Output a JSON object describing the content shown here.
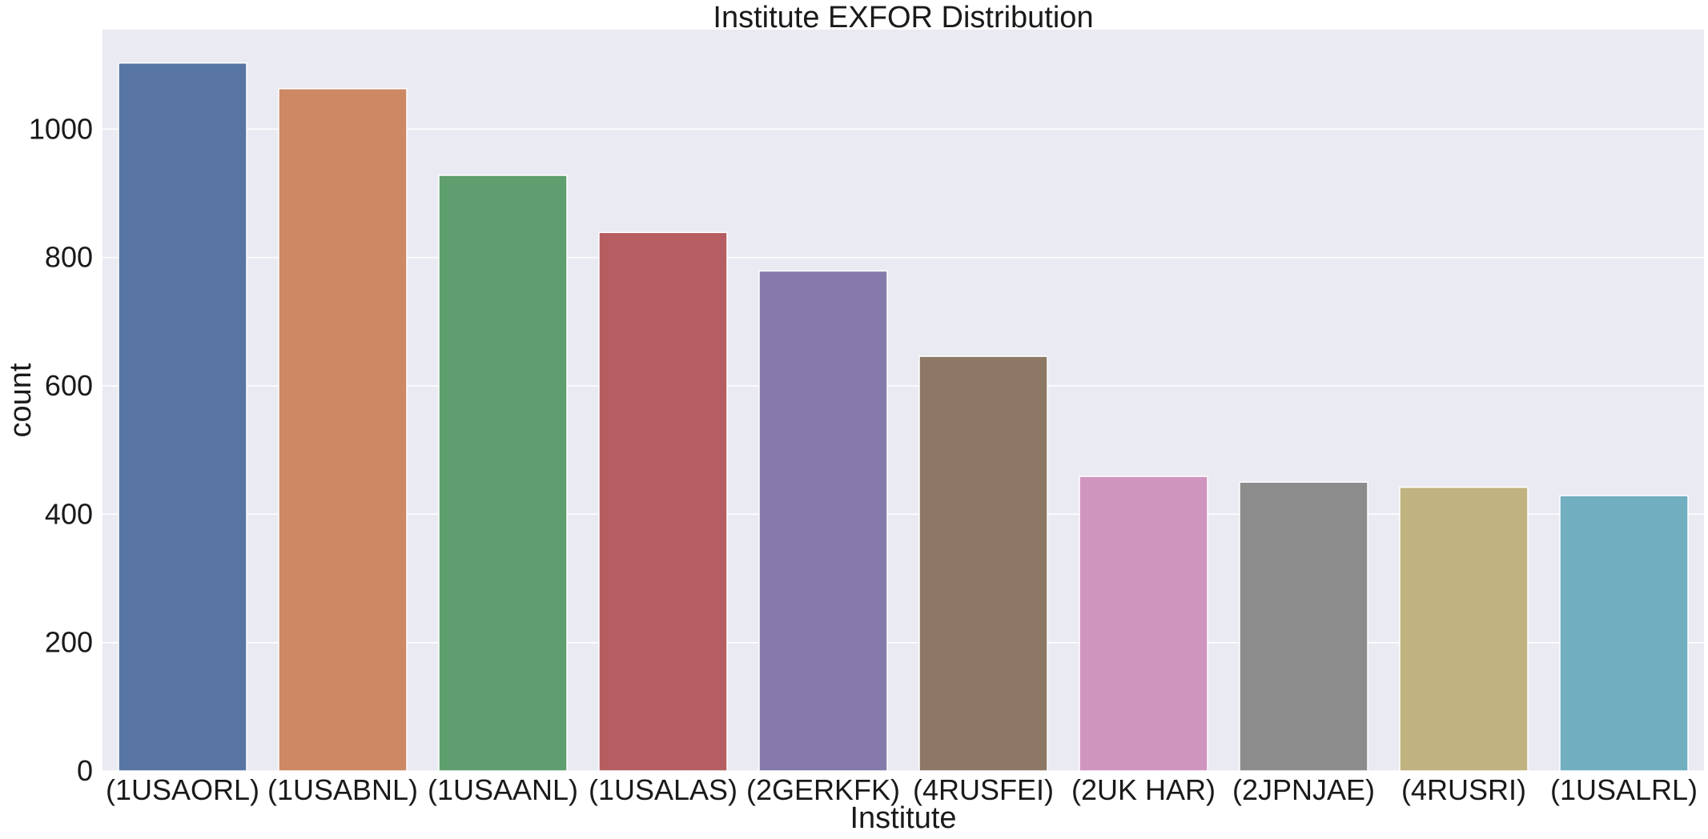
{
  "chart_data": {
    "type": "bar",
    "title": "Institute EXFOR Distribution",
    "xlabel": "Institute",
    "ylabel": "count",
    "categories": [
      "(1USAORL)",
      "(1USABNL)",
      "(1USAANL)",
      "(1USALAS)",
      "(2GERKFK)",
      "(4RUSFEI)",
      "(2UK HAR)",
      "(2JPNJAE)",
      "(4RUSRI)",
      "(1USALRL)"
    ],
    "values": [
      1103,
      1063,
      928,
      839,
      779,
      646,
      459,
      450,
      442,
      429
    ],
    "colors": [
      "#5875a4",
      "#cc8963",
      "#5f9e6e",
      "#b55d60",
      "#857aab",
      "#8d7866",
      "#d095bf",
      "#8c8c8c",
      "#c1b37f",
      "#71aec0"
    ],
    "ylim": [
      0,
      1155
    ],
    "yticks": [
      0,
      200,
      400,
      600,
      800,
      1000
    ],
    "grid": true,
    "background": "#eaeaf2"
  }
}
